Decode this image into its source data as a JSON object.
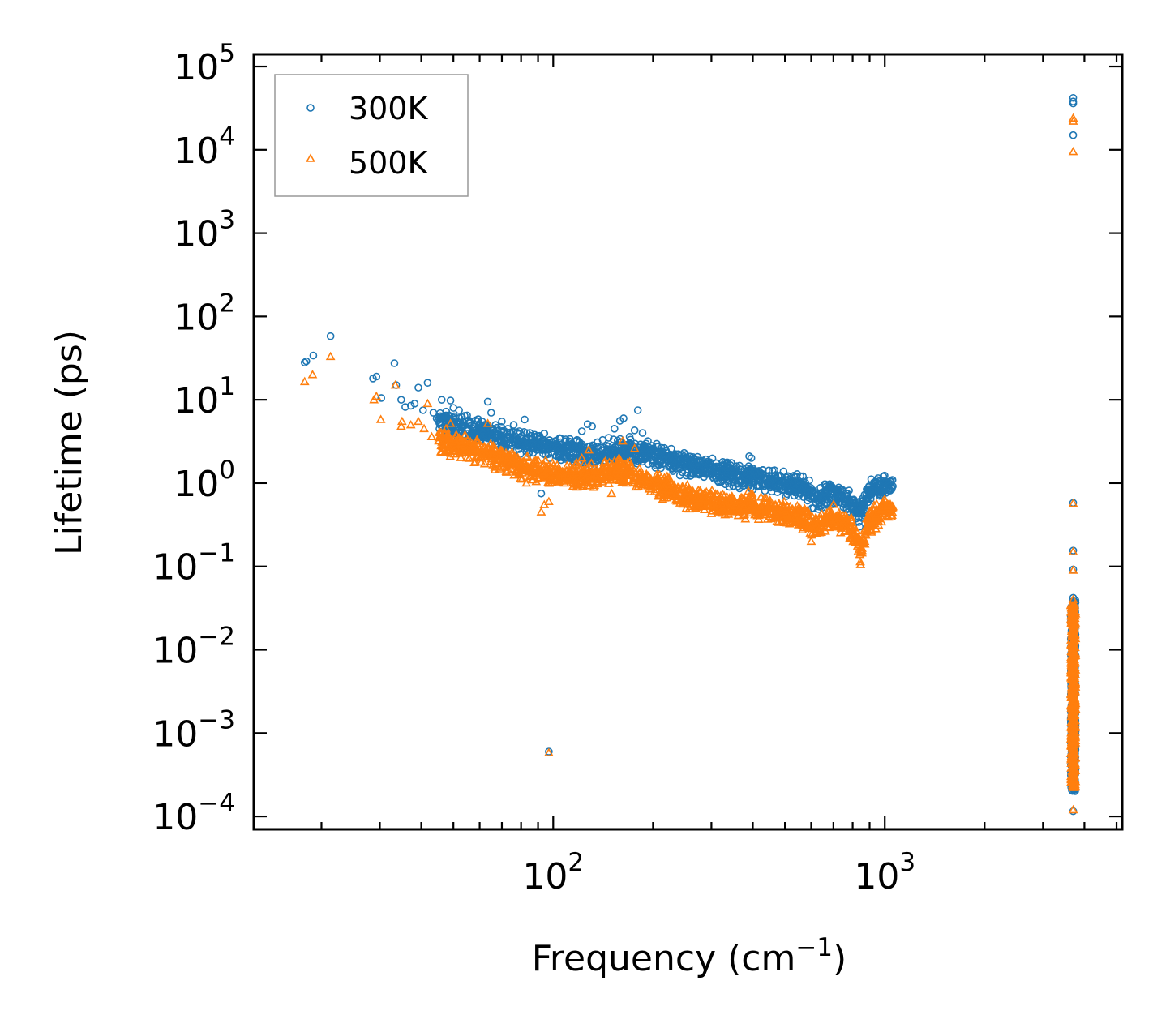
{
  "chart_data": {
    "type": "scatter",
    "title": "",
    "xlabel": "Frequency (cm",
    "xlabel_sup": "−1",
    "xlabel_close": ")",
    "ylabel": "Lifetime (ps)",
    "xscale": "log",
    "yscale": "log",
    "xlim": [
      12.5,
      5200
    ],
    "ylim": [
      7e-05,
      140000
    ],
    "legend_position": "top-left",
    "x_ticks": [
      {
        "value": 100,
        "base": "10",
        "exp": "2"
      },
      {
        "value": 1000,
        "base": "10",
        "exp": "3"
      }
    ],
    "y_ticks": [
      {
        "value": 0.0001,
        "base": "10",
        "exp": "−4"
      },
      {
        "value": 0.001,
        "base": "10",
        "exp": "−3"
      },
      {
        "value": 0.01,
        "base": "10",
        "exp": "−2"
      },
      {
        "value": 0.1,
        "base": "10",
        "exp": "−1"
      },
      {
        "value": 1,
        "base": "10",
        "exp": "0"
      },
      {
        "value": 10,
        "base": "10",
        "exp": "1"
      },
      {
        "value": 100,
        "base": "10",
        "exp": "2"
      },
      {
        "value": 1000,
        "base": "10",
        "exp": "3"
      },
      {
        "value": 10000,
        "base": "10",
        "exp": "4"
      },
      {
        "value": 100000,
        "base": "10",
        "exp": "5"
      }
    ],
    "series": [
      {
        "name": "300K",
        "marker": "circle",
        "color": "#1f77b4",
        "points": [
          [
            17.8,
            28
          ],
          [
            18.0,
            29
          ],
          [
            18.9,
            34
          ],
          [
            21.3,
            58
          ],
          [
            28.6,
            18
          ],
          [
            29.3,
            19
          ],
          [
            30.3,
            10.5
          ],
          [
            33.2,
            27.5
          ],
          [
            33.6,
            15
          ],
          [
            34.8,
            10
          ],
          [
            35.8,
            8.2
          ],
          [
            37.2,
            8.5
          ],
          [
            38.2,
            9.0
          ],
          [
            39.2,
            14
          ],
          [
            40.5,
            7.5
          ],
          [
            41.8,
            16
          ],
          [
            43.5,
            7.0
          ],
          [
            44.5,
            6.0
          ],
          [
            46.1,
            10
          ],
          [
            47.5,
            6.5
          ],
          [
            49.0,
            9.8
          ],
          [
            50.0,
            8.0
          ],
          [
            52.0,
            7.5
          ],
          [
            53.5,
            5.5
          ],
          [
            55.0,
            6.5
          ],
          [
            57.0,
            5.0
          ],
          [
            59.0,
            5.5
          ],
          [
            61.0,
            4.8
          ],
          [
            63.5,
            9.5
          ],
          [
            65.0,
            7.0
          ],
          [
            67.0,
            5.0
          ],
          [
            70.0,
            5.5
          ],
          [
            73.0,
            4.5
          ],
          [
            76.0,
            5.0
          ],
          [
            79.0,
            4.2
          ],
          [
            82.0,
            5.8
          ],
          [
            85.0,
            4.0
          ],
          [
            88.0,
            3.8
          ],
          [
            91.0,
            3.5
          ],
          [
            94.0,
            3.2
          ],
          [
            97.0,
            3.0
          ],
          [
            100.0,
            2.8
          ],
          [
            103.0,
            2.6
          ],
          [
            106.0,
            2.5
          ],
          [
            110.0,
            2.4
          ],
          [
            114.0,
            2.8
          ],
          [
            118.0,
            3.3
          ],
          [
            122.0,
            4.2
          ],
          [
            127.0,
            5.1
          ],
          [
            131.0,
            4.8
          ],
          [
            136.0,
            3.1
          ],
          [
            141.0,
            3.3
          ],
          [
            147.0,
            3.5
          ],
          [
            153.0,
            4.5
          ],
          [
            159.0,
            5.6
          ],
          [
            163.0,
            6.0
          ],
          [
            170.0,
            3.6
          ],
          [
            176.0,
            4.3
          ],
          [
            180.0,
            7.5
          ],
          [
            186.0,
            4.0
          ],
          [
            193.0,
            3.2
          ],
          [
            200.0,
            2.6
          ],
          [
            208.0,
            2.4
          ],
          [
            216.0,
            2.2
          ],
          [
            225.0,
            2.0
          ],
          [
            234.0,
            2.1
          ],
          [
            243.0,
            1.8
          ],
          [
            253.0,
            1.7
          ],
          [
            263.0,
            1.5
          ],
          [
            274.0,
            1.3
          ],
          [
            285.0,
            1.4
          ],
          [
            297.0,
            1.3
          ],
          [
            309.0,
            1.5
          ],
          [
            322.0,
            1.4
          ],
          [
            336.0,
            1.3
          ],
          [
            350.0,
            1.2
          ],
          [
            365.0,
            1.25
          ],
          [
            380.0,
            1.2
          ],
          [
            390.0,
            2.1
          ],
          [
            396.0,
            2.0
          ],
          [
            412.0,
            1.2
          ],
          [
            430.0,
            1.0
          ],
          [
            448.0,
            1.0
          ],
          [
            467.0,
            0.95
          ],
          [
            487.0,
            1.05
          ],
          [
            508.0,
            1.0
          ],
          [
            530.0,
            0.95
          ],
          [
            553.0,
            0.85
          ],
          [
            577.0,
            0.75
          ],
          [
            600.0,
            0.35
          ],
          [
            610.0,
            0.5
          ],
          [
            625.0,
            0.7
          ],
          [
            640.0,
            0.88
          ],
          [
            660.0,
            0.95
          ],
          [
            680.0,
            0.9
          ],
          [
            700.0,
            0.85
          ],
          [
            720.0,
            0.72
          ],
          [
            750.0,
            0.8
          ],
          [
            780.0,
            0.65
          ],
          [
            810.0,
            0.45
          ],
          [
            840.0,
            0.3
          ],
          [
            860.0,
            0.5
          ],
          [
            880.0,
            0.72
          ],
          [
            900.0,
            0.85
          ],
          [
            930.0,
            0.95
          ],
          [
            960.0,
            1.05
          ],
          [
            990.0,
            1.2
          ],
          [
            1020.0,
            0.95
          ],
          [
            1050.0,
            0.85
          ],
          [
            3700,
            42000
          ],
          [
            3700,
            38000
          ],
          [
            3700,
            36000
          ],
          [
            3700,
            15000
          ],
          [
            3700,
            0.58
          ],
          [
            3700,
            0.155
          ],
          [
            3700,
            0.092
          ],
          [
            3700,
            0.042
          ],
          [
            3700,
            0.0001156
          ]
        ],
        "band": [
          [
            45,
            5.5
          ],
          [
            60,
            4.2
          ],
          [
            80,
            3.0
          ],
          [
            100,
            2.7
          ],
          [
            130,
            2.2
          ],
          [
            160,
            2.5
          ],
          [
            200,
            2.2
          ],
          [
            260,
            1.6
          ],
          [
            330,
            1.3
          ],
          [
            420,
            1.1
          ],
          [
            520,
            0.95
          ],
          [
            580,
            0.85
          ],
          [
            620,
            0.6
          ],
          [
            700,
            0.8
          ],
          [
            800,
            0.55
          ],
          [
            850,
            0.45
          ],
          [
            900,
            0.8
          ],
          [
            1000,
            0.95
          ],
          [
            1060,
            0.85
          ]
        ],
        "outliers": [
          [
            92,
            0.75
          ],
          [
            97,
            0.0006
          ]
        ],
        "vertical_cluster": {
          "x": 3700,
          "y_from": 0.0002,
          "y_to": 0.04
        }
      },
      {
        "name": "500K",
        "marker": "triangle",
        "color": "#ff7f0e",
        "points": [
          [
            17.8,
            16.5
          ],
          [
            18.8,
            20
          ],
          [
            21.3,
            33
          ],
          [
            28.8,
            10
          ],
          [
            29.3,
            11
          ],
          [
            30.2,
            5.8
          ],
          [
            33.4,
            15
          ],
          [
            34.8,
            4.8
          ],
          [
            35.0,
            5.5
          ],
          [
            37.2,
            5.0
          ],
          [
            39.2,
            5.5
          ],
          [
            40.8,
            4.5
          ],
          [
            41.8,
            9.0
          ],
          [
            43.0,
            3.6
          ],
          [
            46.0,
            4.0
          ],
          [
            47.5,
            4.5
          ],
          [
            49.0,
            5.2
          ],
          [
            51.0,
            3.8
          ],
          [
            53.0,
            3.0
          ],
          [
            55.0,
            2.5
          ],
          [
            57.0,
            2.7
          ],
          [
            59.0,
            2.0
          ],
          [
            61.0,
            2.2
          ],
          [
            63.5,
            5.2
          ],
          [
            66.0,
            2.8
          ],
          [
            69.0,
            2.1
          ],
          [
            72.0,
            2.3
          ],
          [
            76.0,
            1.8
          ],
          [
            80.0,
            1.6
          ],
          [
            83.0,
            1.0
          ],
          [
            86.0,
            1.2
          ],
          [
            90.0,
            1.5
          ],
          [
            94.0,
            0.55
          ],
          [
            97.0,
            0.6
          ],
          [
            100.0,
            1.4
          ],
          [
            105.0,
            1.3
          ],
          [
            110.0,
            1.2
          ],
          [
            116.0,
            1.5
          ],
          [
            122.0,
            2.0
          ],
          [
            128.0,
            2.5
          ],
          [
            134.0,
            1.4
          ],
          [
            140.0,
            1.2
          ],
          [
            146.0,
            1.3
          ],
          [
            150.0,
            0.75
          ],
          [
            158.0,
            2.0
          ],
          [
            162.0,
            3.2
          ],
          [
            170.0,
            1.8
          ],
          [
            176.0,
            2.6
          ],
          [
            182.0,
            1.5
          ],
          [
            190.0,
            1.2
          ],
          [
            198.0,
            1.0
          ],
          [
            206.0,
            0.9
          ],
          [
            214.0,
            0.85
          ],
          [
            224.0,
            0.7
          ],
          [
            236.0,
            0.75
          ],
          [
            248.0,
            0.6
          ],
          [
            260.0,
            0.55
          ],
          [
            274.0,
            0.6
          ],
          [
            288.0,
            0.65
          ],
          [
            302.0,
            0.6
          ],
          [
            318.0,
            0.55
          ],
          [
            334.0,
            0.55
          ],
          [
            350.0,
            0.5
          ],
          [
            368.0,
            0.55
          ],
          [
            388.0,
            0.8
          ],
          [
            398.0,
            0.75
          ],
          [
            420.0,
            0.5
          ],
          [
            440.0,
            0.48
          ],
          [
            460.0,
            0.45
          ],
          [
            485.0,
            0.45
          ],
          [
            510.0,
            0.4
          ],
          [
            535.0,
            0.38
          ],
          [
            560.0,
            0.36
          ],
          [
            590.0,
            0.3
          ],
          [
            600.0,
            0.2
          ],
          [
            620.0,
            0.25
          ],
          [
            640.0,
            0.3
          ],
          [
            660.0,
            0.4
          ],
          [
            690.0,
            0.45
          ],
          [
            720.0,
            0.35
          ],
          [
            760.0,
            0.3
          ],
          [
            800.0,
            0.22
          ],
          [
            830.0,
            0.15
          ],
          [
            845.0,
            0.105
          ],
          [
            870.0,
            0.2
          ],
          [
            900.0,
            0.35
          ],
          [
            940.0,
            0.4
          ],
          [
            980.0,
            0.5
          ],
          [
            1020.0,
            0.55
          ],
          [
            1050.0,
            0.5
          ],
          [
            3700,
            24000
          ],
          [
            3700,
            22000
          ],
          [
            3700,
            9500
          ],
          [
            3700,
            0.57
          ],
          [
            3700,
            0.15
          ],
          [
            3700,
            0.09
          ],
          [
            3700,
            0.04
          ],
          [
            3700,
            0.00012
          ]
        ],
        "band": [
          [
            45,
            3.2
          ],
          [
            60,
            2.4
          ],
          [
            80,
            1.6
          ],
          [
            100,
            1.3
          ],
          [
            130,
            1.2
          ],
          [
            160,
            1.4
          ],
          [
            200,
            1.0
          ],
          [
            260,
            0.65
          ],
          [
            330,
            0.55
          ],
          [
            420,
            0.5
          ],
          [
            520,
            0.42
          ],
          [
            580,
            0.36
          ],
          [
            610,
            0.28
          ],
          [
            700,
            0.4
          ],
          [
            800,
            0.28
          ],
          [
            845,
            0.15
          ],
          [
            900,
            0.35
          ],
          [
            1000,
            0.5
          ],
          [
            1060,
            0.5
          ]
        ],
        "outliers": [
          [
            92,
            0.45
          ],
          [
            97,
            0.00058
          ]
        ],
        "vertical_cluster": {
          "x": 3700,
          "y_from": 0.00022,
          "y_to": 0.035
        }
      }
    ]
  }
}
